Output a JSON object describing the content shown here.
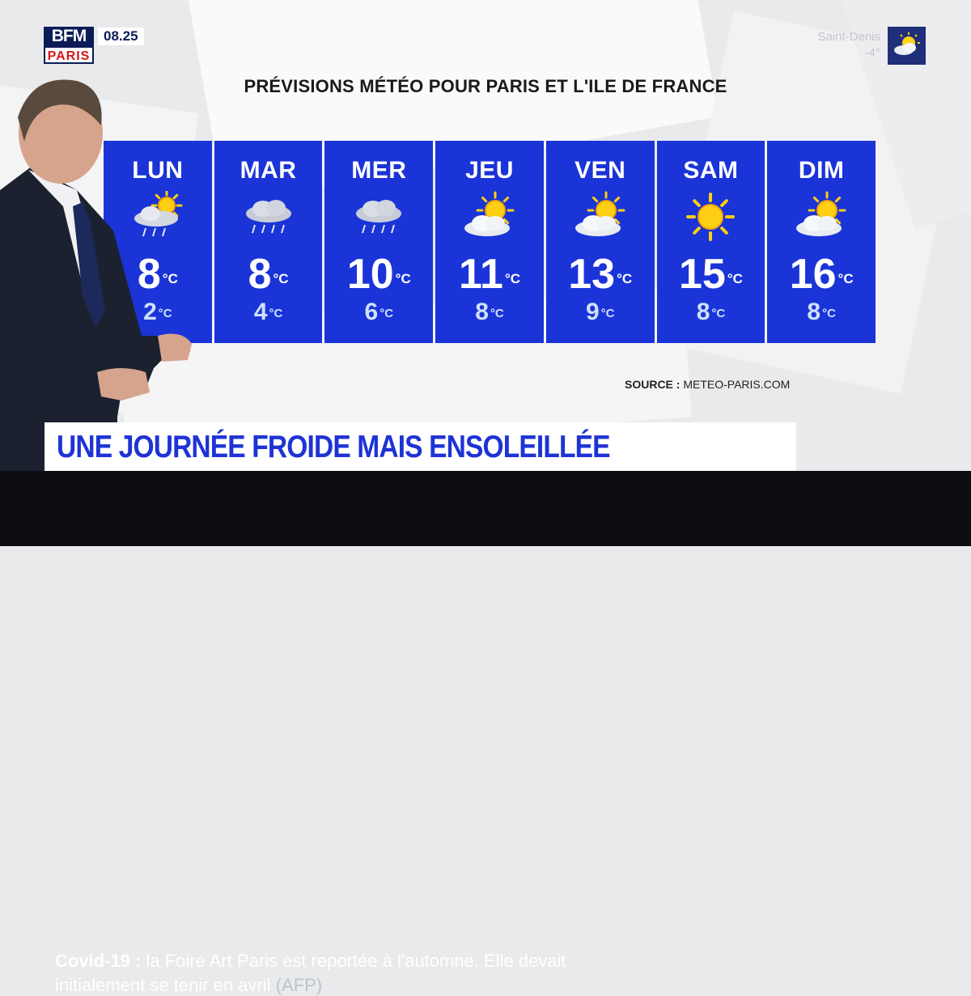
{
  "channel": {
    "logo_top": "BFM",
    "logo_bottom": "PARIS",
    "time": "08.25"
  },
  "live_weather": {
    "location": "Saint-Denis",
    "temperature": "-4°",
    "icon": "sun-behind-cloud-icon"
  },
  "forecast": {
    "title": "PRÉVISIONS MÉTÉO POUR PARIS ET L'ILE DE FRANCE",
    "unit": "°C",
    "days": [
      {
        "name": "LUN",
        "high": "8",
        "low": "2",
        "icon": "sun-cloud-rain-icon"
      },
      {
        "name": "MAR",
        "high": "8",
        "low": "4",
        "icon": "rain-cloud-icon"
      },
      {
        "name": "MER",
        "high": "10",
        "low": "6",
        "icon": "rain-cloud-icon"
      },
      {
        "name": "JEU",
        "high": "11",
        "low": "8",
        "icon": "sun-behind-cloud-icon"
      },
      {
        "name": "VEN",
        "high": "13",
        "low": "9",
        "icon": "sun-behind-cloud-icon"
      },
      {
        "name": "SAM",
        "high": "15",
        "low": "8",
        "icon": "sun-icon"
      },
      {
        "name": "DIM",
        "high": "16",
        "low": "8",
        "icon": "sun-behind-cloud-icon"
      }
    ],
    "source_label": "SOURCE :",
    "source_value": "METEO-PARIS.COM"
  },
  "headline": "UNE JOURNÉE FROIDE MAIS ENSOLEILLÉE",
  "ticker": {
    "topic": "Covid-19 :",
    "line1": "la Foire Art Paris est reportée à l'automne. Elle devait",
    "line2": "initialement se tenir en avril",
    "credit": "(AFP)"
  },
  "colors": {
    "tile": "#1a34d8",
    "headline": "#1e33d6",
    "ticker_bg": "#0c0e14",
    "logo_bg": "#0b1c57"
  }
}
